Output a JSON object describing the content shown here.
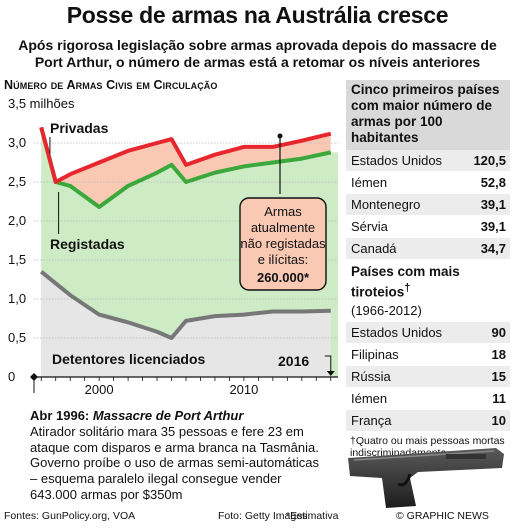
{
  "header": {
    "title": "Posse de armas na Austrália cresce",
    "subtitle": "Após rigorosa legislação sobre armas aprovada depois do massacre de Port Arthur, o número de armas está a retomar os níveis anteriores"
  },
  "chart_data": {
    "type": "line",
    "title": "Número de Armas Civis em Circulação",
    "y_unit_label": "3,5 milhões",
    "ylim": [
      0,
      3.5
    ],
    "yticks": [
      "3,0",
      "2,5",
      "2,0",
      "1,5",
      "1,0",
      "0,5",
      "0"
    ],
    "xlim": [
      1995.5,
      2016.5
    ],
    "xticks": [
      "2000",
      "2010"
    ],
    "end_label": "2016",
    "series": [
      {
        "name": "Privadas",
        "color": "#e8262d",
        "x": [
          1996,
          1997,
          1998,
          2000,
          2002,
          2004,
          2005,
          2006,
          2008,
          2010,
          2012,
          2014,
          2016
        ],
        "values": [
          3.2,
          2.5,
          2.6,
          2.75,
          2.9,
          3.0,
          3.05,
          2.72,
          2.85,
          2.95,
          2.95,
          3.03,
          3.12
        ]
      },
      {
        "name": "Registadas",
        "color": "#3ca83c",
        "x": [
          1996,
          1997,
          1998,
          2000,
          2002,
          2004,
          2005,
          2006,
          2008,
          2010,
          2012,
          2014,
          2016
        ],
        "values": [
          3.2,
          2.5,
          2.45,
          2.18,
          2.45,
          2.62,
          2.72,
          2.5,
          2.62,
          2.7,
          2.75,
          2.8,
          2.88
        ]
      },
      {
        "name": "Detentores licenciados",
        "color": "#777777",
        "x": [
          1996,
          1998,
          2000,
          2002,
          2004,
          2005,
          2006,
          2008,
          2010,
          2012,
          2014,
          2016
        ],
        "values": [
          1.35,
          1.05,
          0.8,
          0.7,
          0.58,
          0.5,
          0.72,
          0.78,
          0.8,
          0.84,
          0.84,
          0.85
        ]
      }
    ],
    "annotation": {
      "text_lines": [
        "Armas",
        "atualmente",
        "não registadas",
        "e ilícitas:"
      ],
      "value": "260.000*"
    }
  },
  "story": {
    "date": "Abr 1996:",
    "event": "Massacre de Port Arthur",
    "body": "Atirador solitário mara 35 pessoas e fere 23 em ataque com disparos e arma branca na Tasmânia. Governo proíbe o uso de armas semi-automáticas – esquema paralelo ilegal consegue vender 643.000 armas por $350m"
  },
  "top_countries": {
    "title": "Cinco primeiros países com maior número de armas por 100 habitantes",
    "rows": [
      {
        "name": "Estados Unidos",
        "value": "120,5"
      },
      {
        "name": "Iémen",
        "value": "52,8"
      },
      {
        "name": "Montenegro",
        "value": "39,1"
      },
      {
        "name": "Sérvia",
        "value": "39,1"
      },
      {
        "name": "Canadá",
        "value": "34,7"
      }
    ]
  },
  "shootings": {
    "title": "Países com mais tiroteios",
    "dagger": "†",
    "range": "(1966-2012)",
    "rows": [
      {
        "name": "Estados Unidos",
        "value": "90"
      },
      {
        "name": "Filipinas",
        "value": "18"
      },
      {
        "name": "Rússia",
        "value": "15"
      },
      {
        "name": "Iémen",
        "value": "11"
      },
      {
        "name": "França",
        "value": "10"
      }
    ],
    "footnote": "†Quatro ou mais pessoas mortas indiscriminadamente"
  },
  "footer": {
    "sources": "Fontes: GunPolicy.org, VOA",
    "photo": "Foto: Getty Images",
    "estimate": "*Estimativa",
    "brand": "© GRAPHIC NEWS"
  }
}
